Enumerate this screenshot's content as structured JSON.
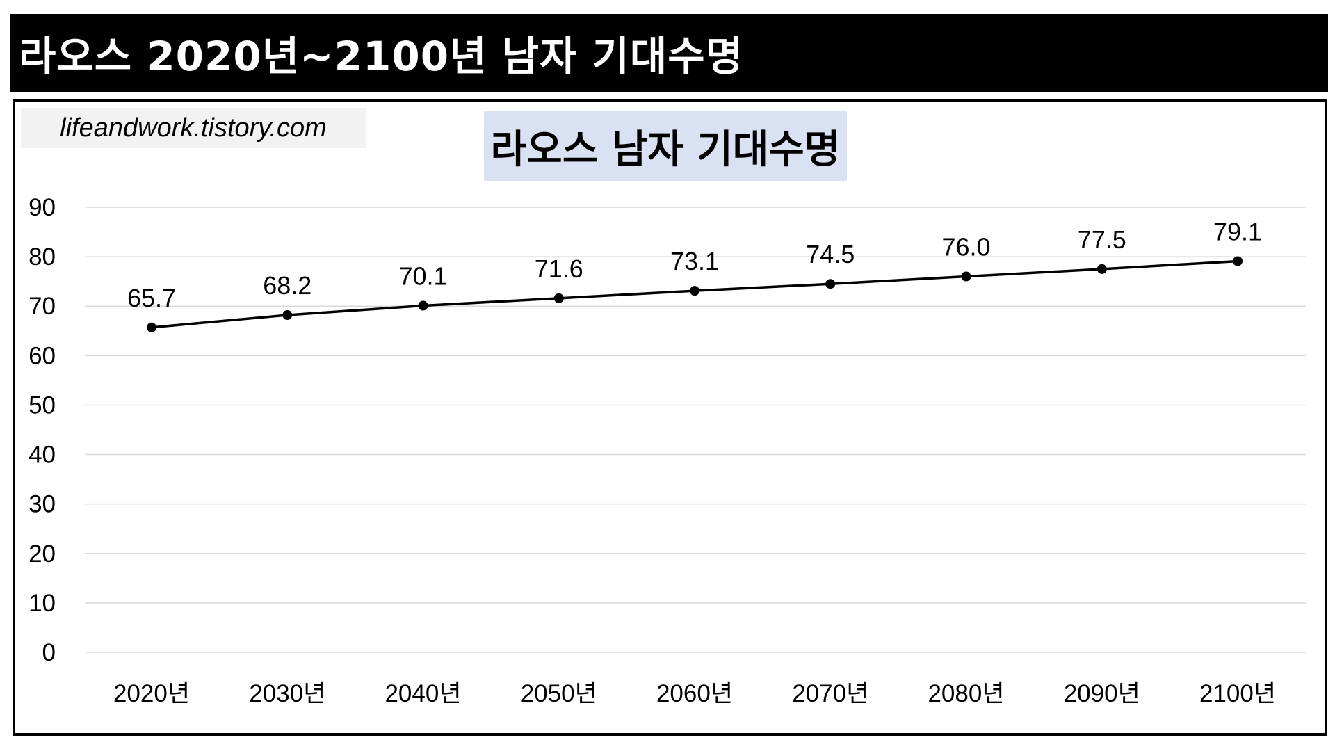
{
  "header": {
    "title": "라오스 2020년~2100년 남자 기대수명"
  },
  "watermark": {
    "text": "lifeandwork.tistory.com"
  },
  "chart_data": {
    "type": "line",
    "title": "라오스 남자 기대수명",
    "categories": [
      "2020년",
      "2030년",
      "2040년",
      "2050년",
      "2060년",
      "2070년",
      "2080년",
      "2090년",
      "2100년"
    ],
    "series": [
      {
        "values": [
          65.7,
          68.2,
          70.1,
          71.6,
          73.1,
          74.5,
          76.0,
          77.5,
          79.1
        ]
      }
    ],
    "data_labels": [
      "65.7",
      "68.2",
      "70.1",
      "71.6",
      "73.1",
      "74.5",
      "76.0",
      "77.5",
      "79.1"
    ],
    "ylim": [
      0,
      90
    ],
    "yticks": [
      0,
      10,
      20,
      30,
      40,
      50,
      60,
      70,
      80,
      90
    ],
    "xlabel": "",
    "ylabel": "",
    "grid": true,
    "legend": "none",
    "line_color": "#000000",
    "grid_color": "#d9d9d9"
  }
}
